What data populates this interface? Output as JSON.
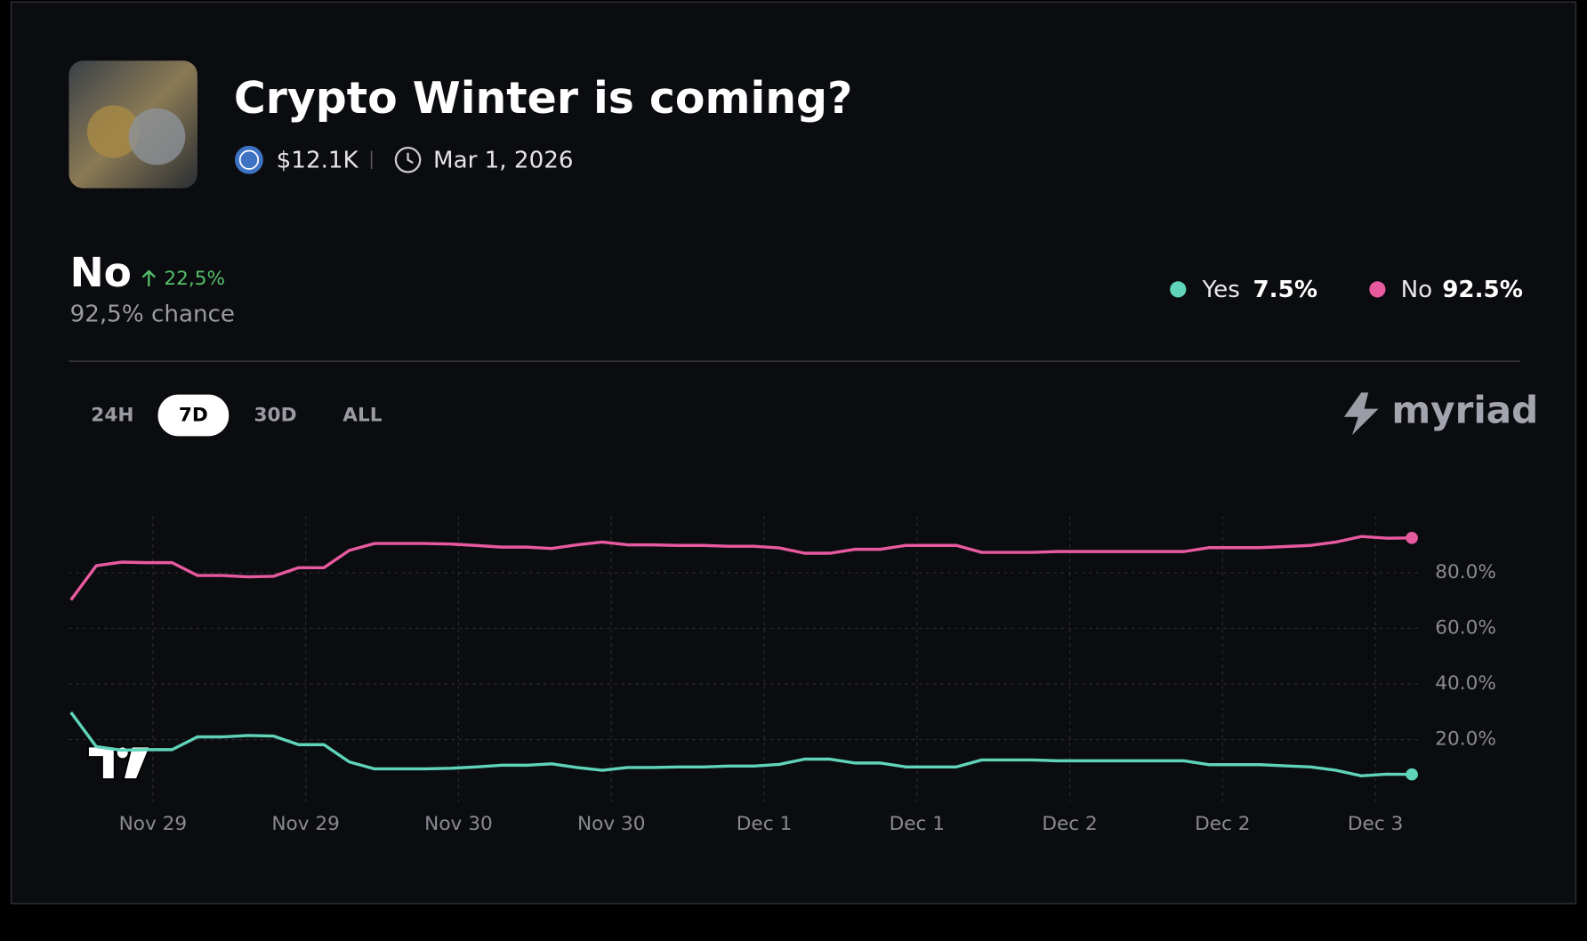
{
  "header": {
    "title": "Crypto Winter is coming?",
    "volume": "$12.1K",
    "end_date": "Mar 1, 2026"
  },
  "summary": {
    "outcome": "No",
    "change": "22,5%",
    "chance": "92,5% chance"
  },
  "tabs": [
    "24H",
    "7D",
    "30D",
    "ALL"
  ],
  "active_tab": 1,
  "brand": "myriad",
  "chart_data": {
    "type": "line",
    "x_tick_labels": [
      "Nov 29",
      "Nov 29",
      "Nov 30",
      "Nov 30",
      "Dec 1",
      "Dec 1",
      "Dec 2",
      "Dec 2",
      "Dec 3"
    ],
    "ylim": [
      0,
      100
    ],
    "yticks": [
      {
        "value": 20,
        "label": "20.0%"
      },
      {
        "value": 40,
        "label": "40.0%"
      },
      {
        "value": 60,
        "label": "60.0%"
      },
      {
        "value": 80,
        "label": "80.0%"
      }
    ],
    "grid": true,
    "series": [
      {
        "name": "Yes",
        "current": "7.5%",
        "color": "#5fd4b9",
        "values": [
          29.8,
          17.5,
          16.2,
          16.4,
          16.4,
          21,
          21,
          21.5,
          21.3,
          18.2,
          18.2,
          12,
          9.5,
          9.5,
          9.5,
          9.7,
          10.2,
          10.8,
          10.8,
          11.3,
          10,
          9,
          10,
          10,
          10.2,
          10.2,
          10.5,
          10.5,
          11.1,
          13,
          13,
          11.6,
          11.6,
          10.2,
          10.2,
          10.2,
          12.7,
          12.7,
          12.7,
          12.4,
          12.4,
          12.4,
          12.4,
          12.4,
          12.4,
          11,
          11,
          11,
          10.6,
          10.2,
          9,
          7,
          7.6,
          7.5
        ]
      },
      {
        "name": "No",
        "current": "92.5%",
        "color": "#e85aa0",
        "values": [
          70.2,
          82.5,
          83.8,
          83.6,
          83.6,
          79,
          79,
          78.5,
          78.7,
          81.8,
          81.8,
          88,
          90.5,
          90.5,
          90.5,
          90.3,
          89.8,
          89.2,
          89.2,
          88.7,
          90,
          91,
          90,
          90,
          89.8,
          89.8,
          89.5,
          89.5,
          88.9,
          87,
          87,
          88.4,
          88.4,
          89.8,
          89.8,
          89.8,
          87.3,
          87.3,
          87.3,
          87.6,
          87.6,
          87.6,
          87.6,
          87.6,
          87.6,
          89,
          89,
          89,
          89.4,
          89.8,
          91,
          93,
          92.4,
          92.5
        ]
      }
    ]
  }
}
